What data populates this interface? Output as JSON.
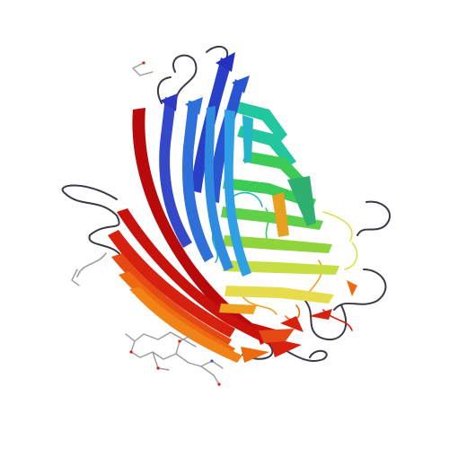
{
  "image": {
    "kind": "protein-ribbon-structure",
    "background": "#ffffff",
    "fold": "beta-barrel",
    "palette": [
      "#1c18b8",
      "#2a55d0",
      "#2f8be0",
      "#24b6b6",
      "#22c7a0",
      "#3ccc55",
      "#8fd43a",
      "#d8e24a",
      "#f0a020",
      "#ee6a10",
      "#d62010",
      "#b80a0a"
    ],
    "loop_color": "#3a3a46",
    "ligand_color": "#9a9a9a"
  }
}
